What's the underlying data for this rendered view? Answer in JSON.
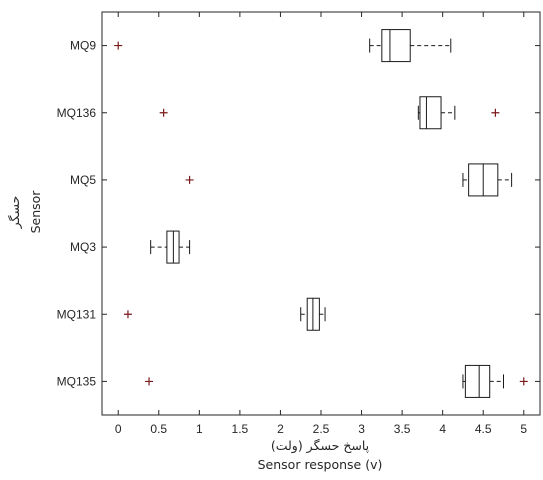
{
  "chart_data": {
    "type": "boxplot",
    "orientation": "horizontal",
    "title": "",
    "xlabel_fa": "پاسخ حسگر (ولت)",
    "xlabel": "Sensor response (v)",
    "ylabel_fa": "حسگر",
    "ylabel": "Sensor",
    "xlim": [
      -0.2,
      5.2
    ],
    "xticks": [
      0,
      0.5,
      1,
      1.5,
      2,
      2.5,
      3,
      3.5,
      4,
      4.5,
      5
    ],
    "xtick_labels": [
      "0",
      "0.5",
      "1",
      "1.5",
      "2",
      "2.5",
      "3",
      "3.5",
      "4",
      "4.5",
      "5"
    ],
    "categories": [
      "MQ9",
      "MQ136",
      "MQ5",
      "MQ3",
      "MQ131",
      "MQ135"
    ],
    "boxes": [
      {
        "label": "MQ9",
        "whisker_low": 3.1,
        "q1": 3.25,
        "median": 3.35,
        "q3": 3.6,
        "whisker_high": 4.1,
        "outliers": [
          0.0
        ]
      },
      {
        "label": "MQ136",
        "whisker_low": 3.7,
        "q1": 3.72,
        "median": 3.8,
        "q3": 3.98,
        "whisker_high": 4.15,
        "outliers": [
          0.56,
          4.65
        ]
      },
      {
        "label": "MQ5",
        "whisker_low": 4.25,
        "q1": 4.32,
        "median": 4.5,
        "q3": 4.68,
        "whisker_high": 4.85,
        "outliers": [
          0.88
        ]
      },
      {
        "label": "MQ3",
        "whisker_low": 0.4,
        "q1": 0.6,
        "median": 0.68,
        "q3": 0.75,
        "whisker_high": 0.88,
        "outliers": []
      },
      {
        "label": "MQ131",
        "whisker_low": 2.25,
        "q1": 2.33,
        "median": 2.4,
        "q3": 2.48,
        "whisker_high": 2.55,
        "outliers": [
          0.12
        ]
      },
      {
        "label": "MQ135",
        "whisker_low": 4.25,
        "q1": 4.28,
        "median": 4.45,
        "q3": 4.58,
        "whisker_high": 4.75,
        "outliers": [
          0.38,
          5.0
        ]
      }
    ],
    "colors": {
      "box": "#1a1a1a",
      "outlier": "#7b1a1a",
      "axis": "#262626"
    },
    "grid": false,
    "legend": "none"
  }
}
